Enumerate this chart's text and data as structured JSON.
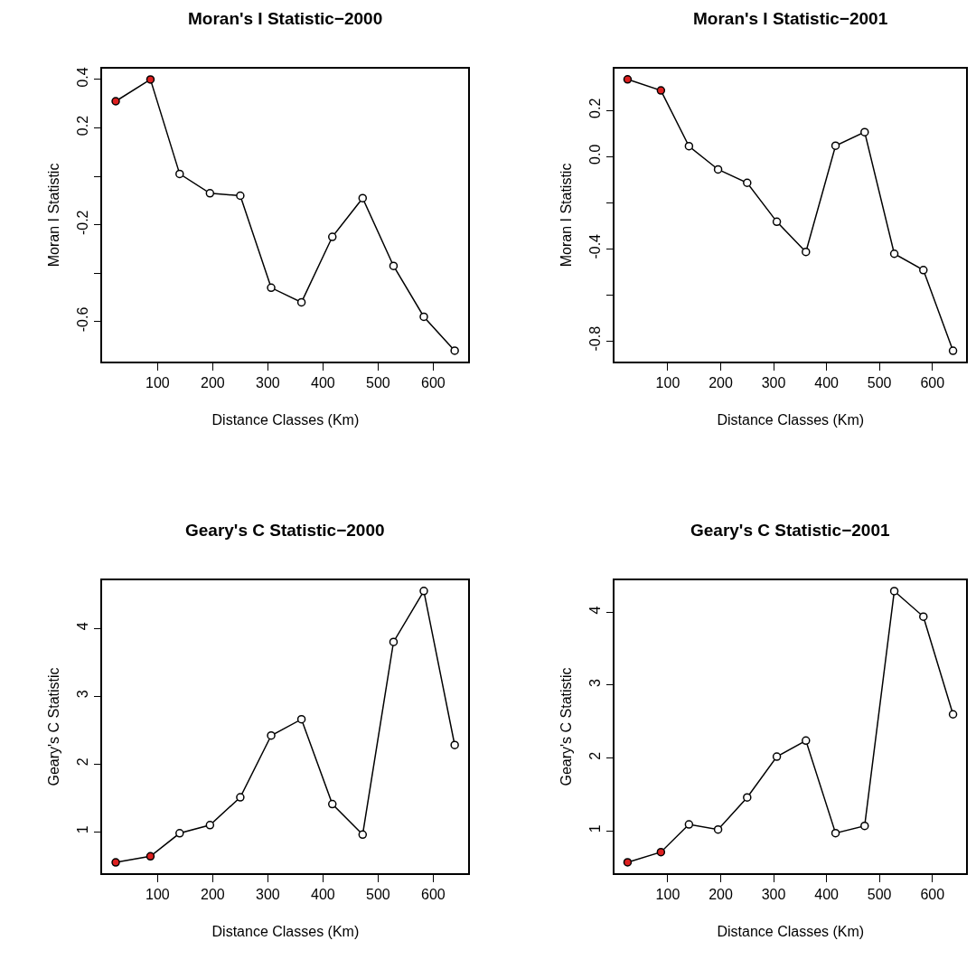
{
  "chart_data": [
    {
      "type": "line",
      "title": "Moran's I Statistic−2000",
      "xlabel": "Distance Classes (Km)",
      "ylabel": "Moran I Statistic",
      "marker": "circle",
      "x": [
        24,
        87,
        140,
        195,
        250,
        306,
        361,
        417,
        472,
        528,
        583,
        639
      ],
      "series": [
        {
          "color": "#000000",
          "colors": [
            "#dd2020",
            "#dd2020",
            "#ffffff",
            "#ffffff",
            "#ffffff",
            "#ffffff",
            "#ffffff",
            "#ffffff",
            "#ffffff",
            "#ffffff",
            "#ffffff",
            "#ffffff"
          ],
          "values": [
            0.31,
            0.4,
            0.01,
            -0.07,
            -0.08,
            -0.46,
            -0.52,
            -0.25,
            -0.09,
            -0.37,
            -0.58,
            -0.72
          ]
        }
      ],
      "xlim": [
        0,
        664
      ],
      "ylim": [
        -0.765,
        0.445
      ],
      "xticks": [
        100,
        200,
        300,
        400,
        500,
        600
      ],
      "yticks": [
        -0.6,
        {
          "value": -0.4,
          "label": null
        },
        -0.2,
        {
          "value": 0,
          "label": null
        },
        0.2,
        0.4
      ]
    },
    {
      "type": "line",
      "title": "Moran's I Statistic−2001",
      "xlabel": "Distance Classes (Km)",
      "ylabel": "Moran I Statistic",
      "marker": "circle",
      "x": [
        24,
        87,
        140,
        195,
        250,
        306,
        361,
        417,
        472,
        528,
        583,
        639
      ],
      "series": [
        {
          "color": "#000000",
          "colors": [
            "#dd2020",
            "#dd2020",
            "#ffffff",
            "#ffffff",
            "#ffffff",
            "#ffffff",
            "#ffffff",
            "#ffffff",
            "#ffffff",
            "#ffffff",
            "#ffffff",
            "#ffffff"
          ],
          "values": [
            0.335,
            0.287,
            0.045,
            -0.056,
            -0.114,
            -0.283,
            -0.414,
            0.047,
            0.106,
            -0.422,
            -0.493,
            -0.843
          ]
        }
      ],
      "xlim": [
        0,
        664
      ],
      "ylim": [
        -0.89,
        0.382
      ],
      "xticks": [
        100,
        200,
        300,
        400,
        500,
        600
      ],
      "yticks": [
        -0.8,
        {
          "value": -0.6,
          "label": null
        },
        -0.4,
        {
          "value": -0.2,
          "label": null
        },
        {
          "value": 0,
          "label": "0.0"
        },
        0.2
      ]
    },
    {
      "type": "line",
      "title": "Geary's C Statistic−2000",
      "xlabel": "Distance Classes (Km)",
      "ylabel": "Geary's C Statistic",
      "marker": "circle",
      "x": [
        24,
        87,
        140,
        195,
        250,
        306,
        361,
        417,
        472,
        528,
        583,
        639
      ],
      "series": [
        {
          "color": "#000000",
          "colors": [
            "#dd2020",
            "#dd2020",
            "#ffffff",
            "#ffffff",
            "#ffffff",
            "#ffffff",
            "#ffffff",
            "#ffffff",
            "#ffffff",
            "#ffffff",
            "#ffffff",
            "#ffffff"
          ],
          "values": [
            0.55,
            0.64,
            0.98,
            1.1,
            1.51,
            2.42,
            2.66,
            1.41,
            0.96,
            3.8,
            4.55,
            2.28
          ]
        }
      ],
      "xlim": [
        0,
        664
      ],
      "ylim": [
        0.39,
        4.71
      ],
      "xticks": [
        100,
        200,
        300,
        400,
        500,
        600
      ],
      "yticks": [
        1,
        2,
        3,
        4
      ]
    },
    {
      "type": "line",
      "title": "Geary's C Statistic−2001",
      "xlabel": "Distance Classes (Km)",
      "ylabel": "Geary's C Statistic",
      "marker": "circle",
      "x": [
        24,
        87,
        140,
        195,
        250,
        306,
        361,
        417,
        472,
        528,
        583,
        639
      ],
      "series": [
        {
          "color": "#000000",
          "colors": [
            "#dd2020",
            "#dd2020",
            "#ffffff",
            "#ffffff",
            "#ffffff",
            "#ffffff",
            "#ffffff",
            "#ffffff",
            "#ffffff",
            "#ffffff",
            "#ffffff",
            "#ffffff"
          ],
          "values": [
            0.57,
            0.71,
            1.09,
            1.02,
            1.46,
            2.02,
            2.24,
            0.97,
            1.07,
            4.29,
            3.94,
            2.6
          ]
        }
      ],
      "xlim": [
        0,
        664
      ],
      "ylim": [
        0.42,
        4.44
      ],
      "xticks": [
        100,
        200,
        300,
        400,
        500,
        600
      ],
      "yticks": [
        1,
        2,
        3,
        4
      ]
    }
  ]
}
